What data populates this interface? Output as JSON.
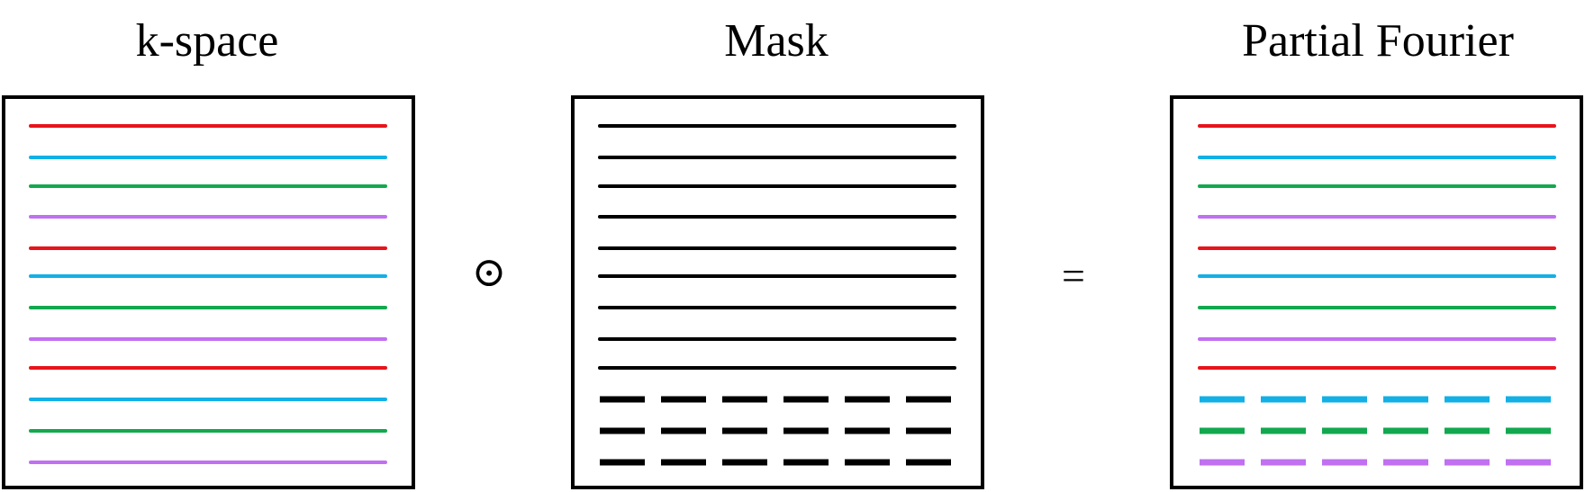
{
  "panels": [
    {
      "title": "k-space",
      "lines": [
        {
          "color": "#e8141b",
          "style": "solid"
        },
        {
          "color": "#13b0e6",
          "style": "solid"
        },
        {
          "color": "#13a84f",
          "style": "solid"
        },
        {
          "color": "#c070f0",
          "style": "solid"
        },
        {
          "color": "#e8141b",
          "style": "solid"
        },
        {
          "color": "#13b0e6",
          "style": "solid"
        },
        {
          "color": "#13a84f",
          "style": "solid"
        },
        {
          "color": "#c070f0",
          "style": "solid"
        },
        {
          "color": "#e8141b",
          "style": "solid"
        },
        {
          "color": "#13b0e6",
          "style": "solid"
        },
        {
          "color": "#13a84f",
          "style": "solid"
        },
        {
          "color": "#c070f0",
          "style": "solid"
        }
      ]
    },
    {
      "title": "Mask",
      "lines": [
        {
          "color": "#000000",
          "style": "solid"
        },
        {
          "color": "#000000",
          "style": "solid"
        },
        {
          "color": "#000000",
          "style": "solid"
        },
        {
          "color": "#000000",
          "style": "solid"
        },
        {
          "color": "#000000",
          "style": "solid"
        },
        {
          "color": "#000000",
          "style": "solid"
        },
        {
          "color": "#000000",
          "style": "solid"
        },
        {
          "color": "#000000",
          "style": "solid"
        },
        {
          "color": "#000000",
          "style": "solid"
        },
        {
          "color": "#000000",
          "style": "dashed"
        },
        {
          "color": "#000000",
          "style": "dashed"
        },
        {
          "color": "#000000",
          "style": "dashed"
        }
      ]
    },
    {
      "title": "Partial Fourier",
      "lines": [
        {
          "color": "#e8141b",
          "style": "solid"
        },
        {
          "color": "#13b0e6",
          "style": "solid"
        },
        {
          "color": "#13a84f",
          "style": "solid"
        },
        {
          "color": "#c070f0",
          "style": "solid"
        },
        {
          "color": "#e8141b",
          "style": "solid"
        },
        {
          "color": "#13b0e6",
          "style": "solid"
        },
        {
          "color": "#13a84f",
          "style": "solid"
        },
        {
          "color": "#c070f0",
          "style": "solid"
        },
        {
          "color": "#e8141b",
          "style": "solid"
        },
        {
          "color": "#13b0e6",
          "style": "dashed"
        },
        {
          "color": "#13a84f",
          "style": "dashed"
        },
        {
          "color": "#c070f0",
          "style": "dashed"
        }
      ]
    }
  ],
  "operators": {
    "hadamard": "⊙",
    "equals": "="
  }
}
